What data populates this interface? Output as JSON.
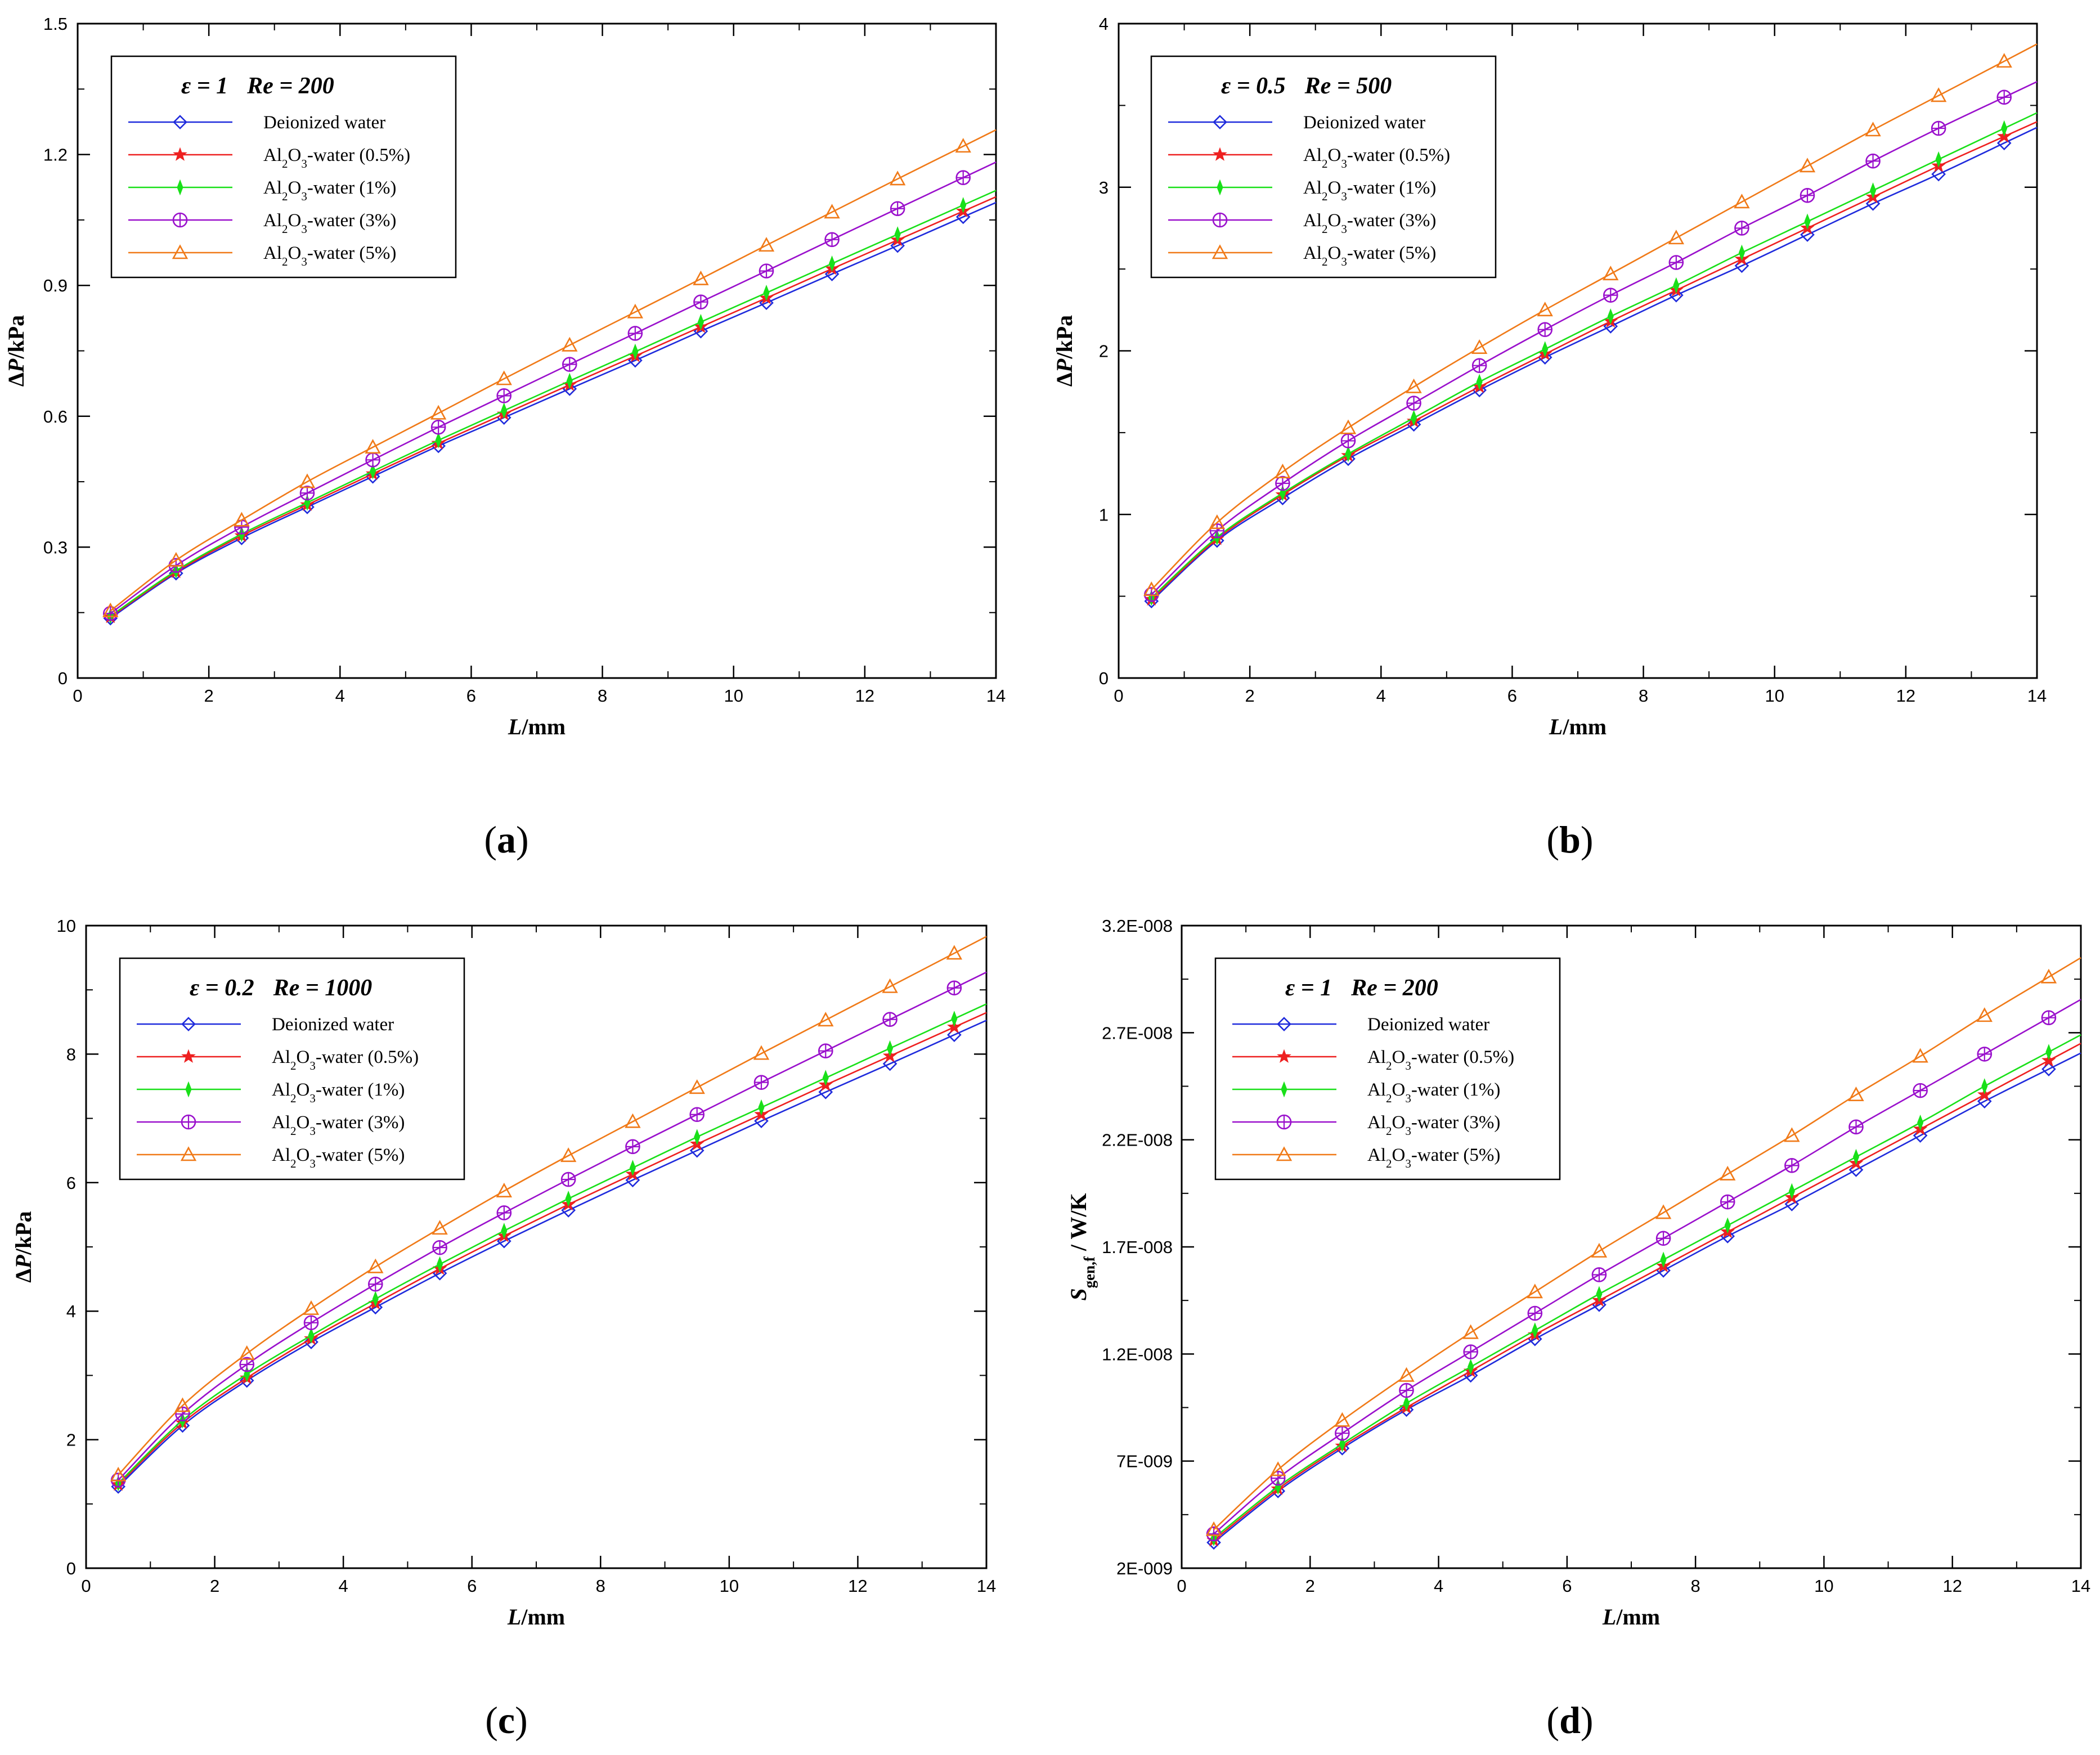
{
  "figure": {
    "series_styles": [
      {
        "key": "dw",
        "color": "#1f2bdc",
        "marker": "diamond"
      },
      {
        "key": "a05",
        "color": "#ee2020",
        "marker": "star"
      },
      {
        "key": "a1",
        "color": "#19e019",
        "marker": "spindle"
      },
      {
        "key": "a3",
        "color": "#9a10cc",
        "marker": "circle-plus"
      },
      {
        "key": "a5",
        "color": "#f07a18",
        "marker": "triangle"
      }
    ]
  },
  "chart_data": [
    {
      "id": "a",
      "type": "line",
      "caption": "(a)",
      "legend_title": {
        "eps": "ε = 1",
        "re": "Re = 200"
      },
      "xlabel": "L/mm",
      "ylabel": "ΔP/kPa",
      "xlim": [
        0,
        14
      ],
      "ylim": [
        0,
        1.5
      ],
      "xticks": [
        0,
        2,
        4,
        6,
        8,
        10,
        12,
        14
      ],
      "xtick_labels": [
        "0",
        "2",
        "4",
        "6",
        "8",
        "10",
        "12",
        "14"
      ],
      "yticks": [
        0,
        0.3,
        0.6,
        0.9,
        1.2,
        1.5
      ],
      "ytick_labels": [
        "0",
        "0.3",
        "0.6",
        "0.9",
        "1.2",
        "1.5"
      ],
      "x": [
        0.5,
        1.5,
        2.5,
        3.5,
        4.5,
        5.5,
        6.5,
        7.5,
        8.5,
        9.5,
        10.5,
        11.5,
        12.5,
        13.5
      ],
      "series": [
        {
          "name": "Deionized water",
          "values": [
            0.137,
            0.24,
            0.321,
            0.392,
            0.462,
            0.532,
            0.597,
            0.663,
            0.728,
            0.795,
            0.86,
            0.926,
            0.991,
            1.057
          ]
        },
        {
          "name": "Al2O3-water (0.5%)",
          "values": [
            0.14,
            0.243,
            0.326,
            0.397,
            0.468,
            0.538,
            0.605,
            0.672,
            0.738,
            0.805,
            0.871,
            0.938,
            1.004,
            1.07
          ]
        },
        {
          "name": "Al2O3-water (1%)",
          "values": [
            0.142,
            0.246,
            0.33,
            0.402,
            0.474,
            0.545,
            0.613,
            0.681,
            0.748,
            0.816,
            0.883,
            0.95,
            1.017,
            1.084
          ]
        },
        {
          "name": "Al2O3-water (3%)",
          "values": [
            0.148,
            0.258,
            0.346,
            0.424,
            0.5,
            0.575,
            0.647,
            0.719,
            0.79,
            0.862,
            0.933,
            1.005,
            1.076,
            1.147
          ]
        },
        {
          "name": "Al2O3-water (5%)",
          "values": [
            0.154,
            0.27,
            0.362,
            0.45,
            0.529,
            0.607,
            0.686,
            0.763,
            0.839,
            0.915,
            0.992,
            1.068,
            1.144,
            1.219
          ]
        }
      ]
    },
    {
      "id": "b",
      "type": "line",
      "caption": "(b)",
      "legend_title": {
        "eps": "ε = 0.5",
        "re": "Re = 500"
      },
      "xlabel": "L/mm",
      "ylabel": "ΔP/kPa",
      "xlim": [
        0,
        14
      ],
      "ylim": [
        0,
        4
      ],
      "xticks": [
        0,
        2,
        4,
        6,
        8,
        10,
        12,
        14
      ],
      "xtick_labels": [
        "0",
        "2",
        "4",
        "6",
        "8",
        "10",
        "12",
        "14"
      ],
      "yticks": [
        0,
        1,
        2,
        3,
        4
      ],
      "ytick_labels": [
        "0",
        "1",
        "2",
        "3",
        "4"
      ],
      "x": [
        0.5,
        1.5,
        2.5,
        3.5,
        4.5,
        5.5,
        6.5,
        7.5,
        8.5,
        9.5,
        10.5,
        11.5,
        12.5,
        13.5
      ],
      "series": [
        {
          "name": "Deionized water",
          "values": [
            0.47,
            0.84,
            1.1,
            1.34,
            1.55,
            1.76,
            1.96,
            2.15,
            2.34,
            2.52,
            2.71,
            2.9,
            3.08,
            3.27
          ]
        },
        {
          "name": "Al2O3-water (0.5%)",
          "values": [
            0.48,
            0.85,
            1.12,
            1.36,
            1.57,
            1.78,
            1.98,
            2.18,
            2.37,
            2.56,
            2.75,
            2.94,
            3.13,
            3.31
          ]
        },
        {
          "name": "Al2O3-water (1%)",
          "values": [
            0.49,
            0.86,
            1.13,
            1.37,
            1.59,
            1.81,
            2.01,
            2.21,
            2.4,
            2.6,
            2.79,
            2.98,
            3.17,
            3.36
          ]
        },
        {
          "name": "Al2O3-water (3%)",
          "values": [
            0.51,
            0.9,
            1.19,
            1.45,
            1.68,
            1.91,
            2.13,
            2.34,
            2.54,
            2.75,
            2.95,
            3.16,
            3.36,
            3.55
          ]
        },
        {
          "name": "Al2O3-water (5%)",
          "values": [
            0.54,
            0.95,
            1.26,
            1.53,
            1.78,
            2.02,
            2.25,
            2.47,
            2.69,
            2.91,
            3.13,
            3.35,
            3.56,
            3.77
          ]
        }
      ]
    },
    {
      "id": "c",
      "type": "line",
      "caption": "(c)",
      "legend_title": {
        "eps": "ε = 0.2",
        "re": "Re = 1000"
      },
      "xlabel": "L/mm",
      "ylabel": "ΔP/kPa",
      "xlim": [
        0,
        14
      ],
      "ylim": [
        0,
        10
      ],
      "xticks": [
        0,
        2,
        4,
        6,
        8,
        10,
        12,
        14
      ],
      "xtick_labels": [
        "0",
        "2",
        "4",
        "6",
        "8",
        "10",
        "12",
        "14"
      ],
      "yticks": [
        0,
        2,
        4,
        6,
        8,
        10
      ],
      "ytick_labels": [
        "0",
        "2",
        "4",
        "6",
        "8",
        "10"
      ],
      "x": [
        0.5,
        1.5,
        2.5,
        3.5,
        4.5,
        5.5,
        6.5,
        7.5,
        8.5,
        9.5,
        10.5,
        11.5,
        12.5,
        13.5
      ],
      "series": [
        {
          "name": "Deionized water",
          "values": [
            1.27,
            2.22,
            2.92,
            3.52,
            4.06,
            4.59,
            5.09,
            5.57,
            6.04,
            6.5,
            6.96,
            7.41,
            7.85,
            8.3
          ]
        },
        {
          "name": "Al2O3-water (0.5%)",
          "values": [
            1.3,
            2.26,
            2.96,
            3.57,
            4.12,
            4.66,
            5.17,
            5.66,
            6.13,
            6.6,
            7.06,
            7.52,
            7.97,
            8.42
          ]
        },
        {
          "name": "Al2O3-water (1%)",
          "values": [
            1.32,
            2.3,
            3.02,
            3.62,
            4.19,
            4.73,
            5.25,
            5.75,
            6.23,
            6.71,
            7.17,
            7.63,
            8.09,
            8.55
          ]
        },
        {
          "name": "Al2O3-water (3%)",
          "values": [
            1.37,
            2.4,
            3.17,
            3.82,
            4.42,
            4.99,
            5.53,
            6.05,
            6.56,
            7.06,
            7.56,
            8.05,
            8.54,
            9.03
          ]
        },
        {
          "name": "Al2O3-water (5%)",
          "values": [
            1.45,
            2.53,
            3.34,
            4.04,
            4.69,
            5.29,
            5.87,
            6.42,
            6.95,
            7.48,
            8.01,
            8.53,
            9.05,
            9.57
          ]
        }
      ]
    },
    {
      "id": "d",
      "type": "line",
      "caption": "(d)",
      "legend_title": {
        "eps": "ε = 1",
        "re": "Re = 200"
      },
      "xlabel": "L/mm",
      "ylabel": "Sgen,f / W/K",
      "ylabel_parts": {
        "main": "S",
        "sub": "gen,f",
        "unit": " / W/K"
      },
      "xlim": [
        0,
        14
      ],
      "ylim": [
        2e-09,
        3.2e-08
      ],
      "xticks": [
        0,
        2,
        4,
        6,
        8,
        10,
        12,
        14
      ],
      "xtick_labels": [
        "0",
        "2",
        "4",
        "6",
        "8",
        "10",
        "12",
        "14"
      ],
      "yticks": [
        2e-09,
        7e-09,
        1.2e-08,
        1.7e-08,
        2.2e-08,
        2.7e-08,
        3.2e-08
      ],
      "ytick_labels": [
        "2E-009",
        "7E-009",
        "1.2E-008",
        "1.7E-008",
        "2.2E-008",
        "2.7E-008",
        "3.2E-008"
      ],
      "x": [
        0.5,
        1.5,
        2.5,
        3.5,
        4.5,
        5.5,
        6.5,
        7.5,
        8.5,
        9.5,
        10.5,
        11.5,
        12.5,
        13.5
      ],
      "series": [
        {
          "name": "Deionized water",
          "values": [
            3.2e-09,
            5.6e-09,
            7.6e-09,
            9.4e-09,
            1.1e-08,
            1.27e-08,
            1.43e-08,
            1.59e-08,
            1.75e-08,
            1.9e-08,
            2.06e-08,
            2.22e-08,
            2.38e-08,
            2.53e-08
          ]
        },
        {
          "name": "Al2O3-water (0.5%)",
          "values": [
            3.3e-09,
            5.7e-09,
            7.7e-09,
            9.5e-09,
            1.12e-08,
            1.29e-08,
            1.45e-08,
            1.61e-08,
            1.77e-08,
            1.93e-08,
            2.09e-08,
            2.25e-08,
            2.41e-08,
            2.57e-08
          ]
        },
        {
          "name": "Al2O3-water (1%)",
          "values": [
            3.4e-09,
            5.8e-09,
            7.8e-09,
            9.7e-09,
            1.14e-08,
            1.31e-08,
            1.48e-08,
            1.64e-08,
            1.8e-08,
            1.96e-08,
            2.12e-08,
            2.28e-08,
            2.45e-08,
            2.61e-08
          ]
        },
        {
          "name": "Al2O3-water (3%)",
          "values": [
            3.6e-09,
            6.2e-09,
            8.3e-09,
            1.03e-08,
            1.21e-08,
            1.39e-08,
            1.57e-08,
            1.74e-08,
            1.91e-08,
            2.08e-08,
            2.26e-08,
            2.43e-08,
            2.6e-08,
            2.77e-08
          ]
        },
        {
          "name": "Al2O3-water (5%)",
          "values": [
            3.8e-09,
            6.6e-09,
            8.9e-09,
            1.1e-08,
            1.3e-08,
            1.49e-08,
            1.68e-08,
            1.86e-08,
            2.04e-08,
            2.22e-08,
            2.41e-08,
            2.59e-08,
            2.78e-08,
            2.96e-08
          ]
        }
      ]
    }
  ]
}
